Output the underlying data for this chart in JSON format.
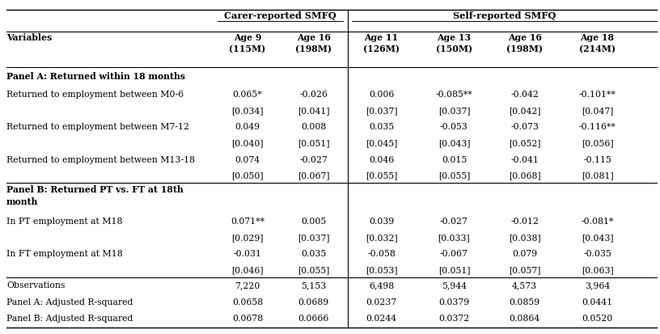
{
  "col_headers_group1": "Carer-reported SMFQ",
  "col_headers_group2": "Self-reported SMFQ",
  "col_headers": [
    "Variables",
    "Age 9\n(115M)",
    "Age 16\n(198M)",
    "Age 11\n(126M)",
    "Age 13\n(150M)",
    "Age 16\n(198M)",
    "Age 18\n(214M)"
  ],
  "rows": [
    {
      "label": "Panel A: Returned within 18 months",
      "bold": true,
      "panel_header": true,
      "two_lines": false,
      "values": [
        "",
        "",
        "",
        "",
        "",
        ""
      ]
    },
    {
      "label": "Returned to employment between M0-6",
      "bold": false,
      "se": false,
      "values": [
        "0.065*",
        "-0.026",
        "0.006",
        "-0.085**",
        "-0.042",
        "-0.101**"
      ]
    },
    {
      "label": "",
      "bold": false,
      "se": true,
      "values": [
        "[0.034]",
        "[0.041]",
        "[0.037]",
        "[0.037]",
        "[0.042]",
        "[0.047]"
      ]
    },
    {
      "label": "Returned to employment between M7-12",
      "bold": false,
      "se": false,
      "values": [
        "0.049",
        "0.008",
        "0.035",
        "-0.053",
        "-0.073",
        "-0.116**"
      ]
    },
    {
      "label": "",
      "bold": false,
      "se": true,
      "values": [
        "[0.040]",
        "[0.051]",
        "[0.045]",
        "[0.043]",
        "[0.052]",
        "[0.056]"
      ]
    },
    {
      "label": "Returned to employment between M13-18",
      "bold": false,
      "se": false,
      "values": [
        "0.074",
        "-0.027",
        "0.046",
        "0.015",
        "-0.041",
        "-0.115"
      ]
    },
    {
      "label": "",
      "bold": false,
      "se": true,
      "values": [
        "[0.050]",
        "[0.067]",
        "[0.055]",
        "[0.055]",
        "[0.068]",
        "[0.081]"
      ]
    },
    {
      "label": "Panel B: Returned PT vs. FT at 18th\nmonth",
      "bold": true,
      "panel_header": true,
      "two_lines": true,
      "values": [
        "",
        "",
        "",
        "",
        "",
        ""
      ]
    },
    {
      "label": "In PT employment at M18",
      "bold": false,
      "se": false,
      "values": [
        "0.071**",
        "0.005",
        "0.039",
        "-0.027",
        "-0.012",
        "-0.081*"
      ]
    },
    {
      "label": "",
      "bold": false,
      "se": true,
      "values": [
        "[0.029]",
        "[0.037]",
        "[0.032]",
        "[0.033]",
        "[0.038]",
        "[0.043]"
      ]
    },
    {
      "label": "In FT employment at M18",
      "bold": false,
      "se": false,
      "values": [
        "-0.031",
        "0.035",
        "-0.058",
        "-0.067",
        "0.079",
        "-0.035"
      ]
    },
    {
      "label": "",
      "bold": false,
      "se": true,
      "values": [
        "[0.046]",
        "[0.055]",
        "[0.053]",
        "[0.051]",
        "[0.057]",
        "[0.063]"
      ]
    },
    {
      "label": "Observations",
      "bold": false,
      "bottom": true,
      "values": [
        "7,220",
        "5,153",
        "6,498",
        "5,944",
        "4,573",
        "3,964"
      ]
    },
    {
      "label": "Panel A: Adjusted R-squared",
      "bold": false,
      "bottom": true,
      "values": [
        "0.0658",
        "0.0689",
        "0.0237",
        "0.0379",
        "0.0859",
        "0.0441"
      ]
    },
    {
      "label": "Panel B: Adjusted R-squared",
      "bold": false,
      "bottom": true,
      "values": [
        "0.0678",
        "0.0666",
        "0.0244",
        "0.0372",
        "0.0864",
        "0.0520"
      ]
    }
  ],
  "background_color": "#ffffff",
  "font_size": 7.8,
  "bold_font_size": 8.2
}
